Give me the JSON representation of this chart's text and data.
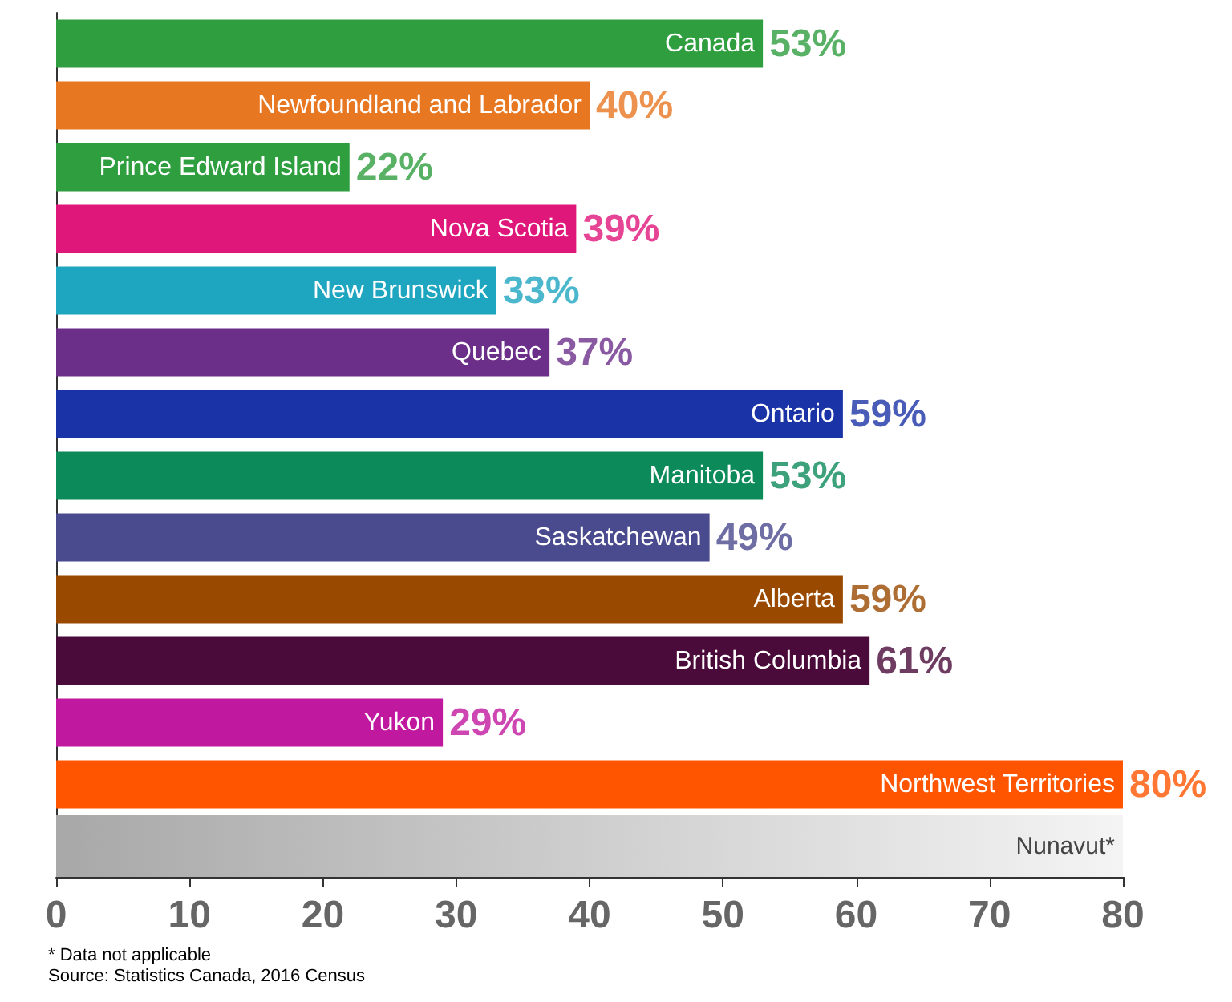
{
  "chart_data": {
    "type": "bar",
    "orientation": "horizontal",
    "categories": [
      "Canada",
      "Newfoundland and Labrador",
      "Prince Edward Island",
      "Nova Scotia",
      "New Brunswick",
      "Quebec",
      "Ontario",
      "Manitoba",
      "Saskatchewan",
      "Alberta",
      "British Columbia",
      "Yukon",
      "Northwest Territories",
      "Nunavut*"
    ],
    "values": [
      53,
      40,
      22,
      39,
      33,
      37,
      59,
      53,
      49,
      59,
      61,
      29,
      80,
      null
    ],
    "value_labels": [
      "53%",
      "40%",
      "22%",
      "39%",
      "33%",
      "37%",
      "59%",
      "53%",
      "49%",
      "59%",
      "61%",
      "29%",
      "80%",
      null
    ],
    "colors": [
      "#2e9e3f",
      "#e87722",
      "#2e9e3f",
      "#e0177a",
      "#1ea5c0",
      "#6b2f8a",
      "#1a33a6",
      "#0c8a5a",
      "#4a4a8e",
      "#9a4a00",
      "#4a0a3a",
      "#c0189e",
      "#ff5500",
      "#b0b0b0"
    ],
    "xlim": [
      0,
      80
    ],
    "xticks": [
      0,
      10,
      20,
      30,
      40,
      50,
      60,
      70,
      80
    ],
    "bands": [
      {
        "axis": "y",
        "from": "Nunavut*",
        "to": "Nunavut*",
        "color": "#a8a8a8"
      }
    ],
    "grid": false,
    "annotations": [
      "* Data not applicable",
      "Source: Statistics Canada, 2016 Census"
    ]
  }
}
